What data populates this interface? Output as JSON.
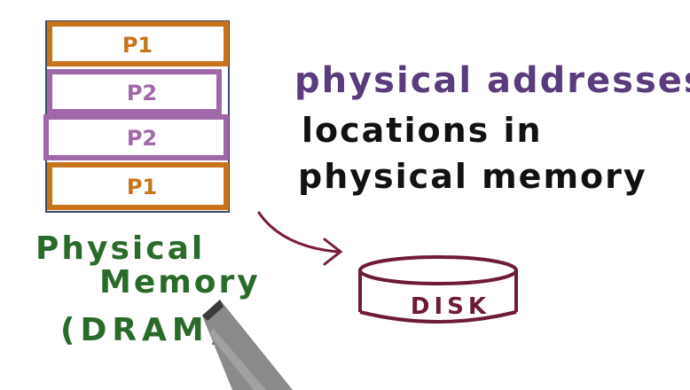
{
  "memory_stack": {
    "blocks": [
      {
        "label": "P1",
        "owner": "P1",
        "color": "#c8741c"
      },
      {
        "label": "P2",
        "owner": "P2",
        "color": "#a068a8"
      },
      {
        "label": "P2",
        "owner": "P2",
        "color": "#a068a8"
      },
      {
        "label": "P1",
        "owner": "P1",
        "color": "#c8741c"
      }
    ]
  },
  "memory_label": {
    "line1": "Physical",
    "line2": "Memory",
    "line3": "(DRAM)",
    "color": "#2a6a2a"
  },
  "heading": {
    "text": "physical addresses",
    "color": "#5a3c7c"
  },
  "definition": {
    "line1": "locations in",
    "line2": "physical memory",
    "color": "#111111"
  },
  "disk": {
    "label": "DISK",
    "color": "#6e1a3a"
  },
  "arrow": {
    "color": "#7a1c3c"
  }
}
